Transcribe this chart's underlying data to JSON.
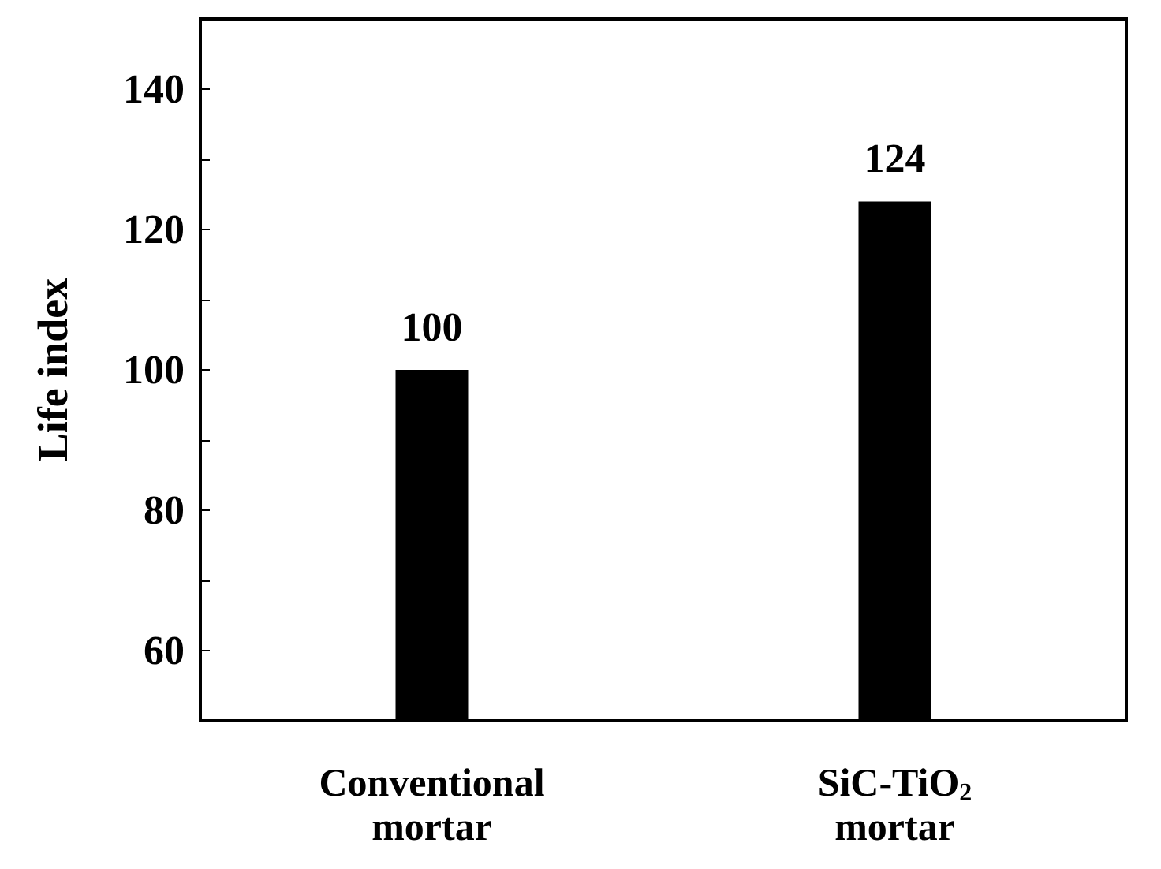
{
  "chart_data": {
    "type": "bar",
    "ylabel": "Life index",
    "categories": [
      "Conventional\nmortar",
      "SiC-TiO$_{2}$\nmortar"
    ],
    "values": [
      100,
      124
    ],
    "color": "#000000",
    "data_labels": true,
    "ylim": [
      50,
      150
    ],
    "yticks": [
      {
        "value": 50,
        "label": null
      },
      60,
      {
        "value": 70,
        "label": null
      },
      80,
      {
        "value": 90,
        "label": null
      },
      100,
      {
        "value": 110,
        "label": null
      },
      120,
      {
        "value": 130,
        "label": null
      },
      140,
      {
        "value": 150,
        "label": null
      }
    ],
    "grid": false
  }
}
